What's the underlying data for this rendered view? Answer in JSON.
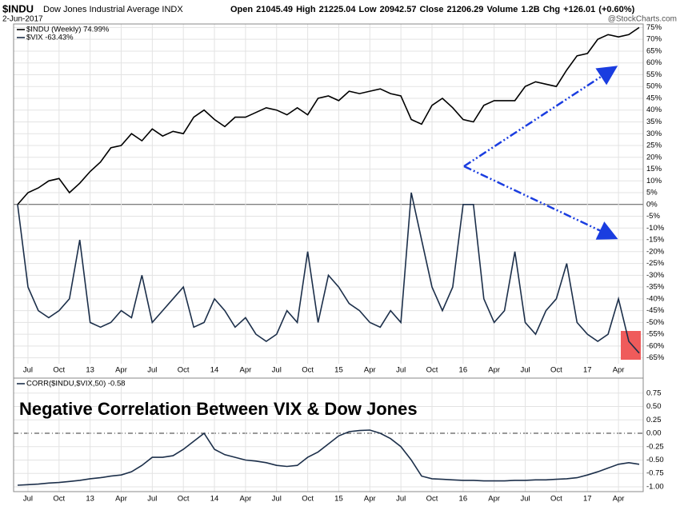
{
  "chart_data": [
    {
      "type": "line",
      "title": "$INDU",
      "subtitle": "Dow Jones Industrial Average INDX",
      "date": "2-Jun-2017",
      "quote": "Open 21045.49  High 21225.04  Low 20942.57  Close 21206.29  Volume 1.2B  Chg +126.01 (+0.60%)",
      "source": "@StockCharts.com",
      "categories": [
        null,
        "Jul",
        null,
        null,
        "Oct",
        null,
        null,
        "13",
        null,
        null,
        "Apr",
        null,
        null,
        "Jul",
        null,
        null,
        "Oct",
        null,
        null,
        "14",
        null,
        null,
        "Apr",
        null,
        null,
        "Jul",
        null,
        null,
        "Oct",
        null,
        null,
        "15",
        null,
        null,
        "Apr",
        null,
        null,
        "Jul",
        null,
        null,
        "Oct",
        null,
        null,
        "16",
        null,
        null,
        "Apr",
        null,
        null,
        "Jul",
        null,
        null,
        "Oct",
        null,
        null,
        "17",
        null,
        null,
        "Apr",
        null,
        null
      ],
      "series": [
        {
          "name": "$INDU (Weekly) 74.99%",
          "color": "#000000",
          "values": [
            0,
            5,
            7,
            10,
            11,
            5,
            9,
            14,
            18,
            24,
            25,
            30,
            27,
            32,
            29,
            31,
            30,
            37,
            40,
            36,
            33,
            37,
            37,
            39,
            41,
            40,
            38,
            41,
            38,
            45,
            46,
            44,
            48,
            47,
            48,
            49,
            47,
            46,
            36,
            34,
            42,
            45,
            41,
            36,
            35,
            42,
            44,
            44,
            44,
            50,
            52,
            51,
            50,
            57,
            63,
            64,
            70,
            72,
            71,
            72,
            75
          ]
        },
        {
          "name": "$VIX -63.43%",
          "color": "#1c2f4a",
          "values": [
            0,
            -35,
            -45,
            -48,
            -45,
            -40,
            -15,
            -50,
            -52,
            -50,
            -45,
            -48,
            -30,
            -50,
            -45,
            -40,
            -35,
            -52,
            -50,
            -40,
            -45,
            -52,
            -48,
            -55,
            -58,
            -55,
            -45,
            -50,
            -20,
            -50,
            -30,
            -35,
            -42,
            -45,
            -50,
            -52,
            -45,
            -50,
            5,
            -15,
            -35,
            -45,
            -35,
            0,
            0,
            -40,
            -50,
            -45,
            -20,
            -50,
            -55,
            -45,
            -40,
            -25,
            -50,
            -55,
            -58,
            -55,
            -40,
            -58,
            -63
          ]
        }
      ],
      "ylim": [
        -67.5,
        76.5
      ],
      "yticks": [
        {
          "value": 75,
          "label": "75%"
        },
        {
          "value": 70,
          "label": "70%"
        },
        {
          "value": 65,
          "label": "65%"
        },
        {
          "value": 60,
          "label": "60%"
        },
        {
          "value": 55,
          "label": "55%"
        },
        {
          "value": 50,
          "label": "50%"
        },
        {
          "value": 45,
          "label": "45%"
        },
        {
          "value": 40,
          "label": "40%"
        },
        {
          "value": 35,
          "label": "35%"
        },
        {
          "value": 30,
          "label": "30%"
        },
        {
          "value": 25,
          "label": "25%"
        },
        {
          "value": 20,
          "label": "20%"
        },
        {
          "value": 15,
          "label": "15%"
        },
        {
          "value": 10,
          "label": "10%"
        },
        {
          "value": 5,
          "label": "5%"
        },
        {
          "value": 0,
          "label": "0%"
        },
        {
          "value": -5,
          "label": "-5%"
        },
        {
          "value": -10,
          "label": "-10%"
        },
        {
          "value": -15,
          "label": "-15%"
        },
        {
          "value": -20,
          "label": "-20%"
        },
        {
          "value": -25,
          "label": "-25%"
        },
        {
          "value": -30,
          "label": "-30%"
        },
        {
          "value": -35,
          "label": "-35%"
        },
        {
          "value": -40,
          "label": "-40%"
        },
        {
          "value": -45,
          "label": "-45%"
        },
        {
          "value": -50,
          "label": "-50%"
        },
        {
          "value": -55,
          "label": "-55%"
        },
        {
          "value": -60,
          "label": "-60%"
        },
        {
          "value": -65,
          "label": "-65%"
        }
      ],
      "grid": true
    },
    {
      "type": "line",
      "annotation": "Negative Correlation Between VIX & Dow Jones",
      "categories": [
        null,
        "Jul",
        null,
        null,
        "Oct",
        null,
        null,
        "13",
        null,
        null,
        "Apr",
        null,
        null,
        "Jul",
        null,
        null,
        "Oct",
        null,
        null,
        "14",
        null,
        null,
        "Apr",
        null,
        null,
        "Jul",
        null,
        null,
        "Oct",
        null,
        null,
        "15",
        null,
        null,
        "Apr",
        null,
        null,
        "Jul",
        null,
        null,
        "Oct",
        null,
        null,
        "16",
        null,
        null,
        "Apr",
        null,
        null,
        "Jul",
        null,
        null,
        "Oct",
        null,
        null,
        "17",
        null,
        null,
        "Apr",
        null,
        null
      ],
      "series": [
        {
          "name": "CORR($INDU,$VIX,50) -0.58",
          "color": "#1c2f4a",
          "values": [
            -0.97,
            -0.96,
            -0.95,
            -0.93,
            -0.92,
            -0.9,
            -0.88,
            -0.85,
            -0.83,
            -0.8,
            -0.78,
            -0.72,
            -0.6,
            -0.45,
            -0.45,
            -0.42,
            -0.3,
            -0.15,
            0,
            -0.3,
            -0.4,
            -0.45,
            -0.5,
            -0.52,
            -0.55,
            -0.6,
            -0.62,
            -0.6,
            -0.45,
            -0.35,
            -0.2,
            -0.05,
            0.03,
            0.05,
            0.06,
            0,
            -0.1,
            -0.25,
            -0.5,
            -0.8,
            -0.85,
            -0.86,
            -0.87,
            -0.88,
            -0.88,
            -0.89,
            -0.89,
            -0.89,
            -0.88,
            -0.88,
            -0.87,
            -0.87,
            -0.86,
            -0.85,
            -0.83,
            -0.78,
            -0.72,
            -0.65,
            -0.58,
            -0.55,
            -0.58
          ]
        }
      ],
      "ylim": [
        -1.09,
        1.03
      ],
      "yticks": [
        0.75,
        {
          "value": 0.5,
          "label": "0.50"
        },
        0.25,
        {
          "value": 0,
          "label": "0.00"
        },
        -0.25,
        {
          "value": -0.5,
          "label": "-0.50"
        },
        -0.75,
        {
          "value": -1,
          "label": "-1.00"
        }
      ],
      "grid": true
    }
  ]
}
